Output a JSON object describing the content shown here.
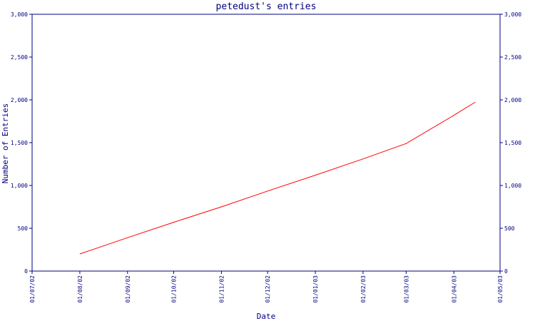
{
  "chart_data": {
    "type": "line",
    "title": "petedust's entries",
    "xlabel": "Date",
    "ylabel": "Number of Entries",
    "ylim": [
      0,
      3000
    ],
    "y_ticks": [
      0,
      500,
      1000,
      1500,
      2000,
      2500,
      3000
    ],
    "y_tick_labels": [
      "0",
      "500",
      "1,000",
      "1,500",
      "2,000",
      "2,500",
      "3,000"
    ],
    "x_ticks": [
      "01/07/02",
      "01/08/02",
      "01/09/02",
      "01/10/02",
      "01/11/02",
      "01/12/02",
      "01/01/03",
      "01/02/03",
      "01/03/03",
      "01/04/03",
      "01/05/03"
    ],
    "grid": false,
    "mirror_y_axis": true,
    "colors": {
      "axis": "#000080",
      "text": "#000080",
      "series": "#ff0000",
      "background": "#ffffff"
    },
    "series": [
      {
        "x": [
          "2002-08-01",
          "2002-09-01",
          "2002-10-01",
          "2002-11-01",
          "2002-12-01",
          "2003-01-01",
          "2003-02-01",
          "2003-03-01",
          "2003-04-01",
          "2003-04-15"
        ],
        "values": [
          200,
          390,
          570,
          750,
          935,
          1120,
          1310,
          1490,
          1820,
          1975
        ]
      }
    ]
  }
}
